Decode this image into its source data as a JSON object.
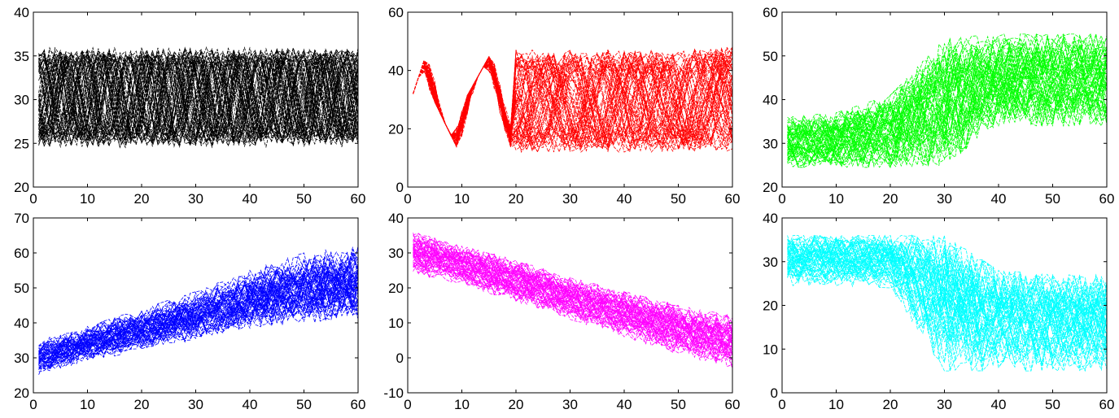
{
  "chart_data": [
    {
      "type": "line",
      "color": "#000000",
      "pattern": "Cyclic: 60 overlapping series oscillating between roughly 25 and 36",
      "xlim": [
        0,
        60
      ],
      "ylim": [
        20,
        40
      ],
      "xticks": [
        0,
        10,
        20,
        30,
        40,
        50,
        60
      ],
      "yticks": [
        20,
        25,
        30,
        35,
        40
      ],
      "tick_labels_x": [
        "0",
        "10",
        "20",
        "30",
        "40",
        "50",
        "60"
      ],
      "tick_labels_y": [
        "20",
        "25",
        "30",
        "35",
        "40"
      ],
      "series_count": 60,
      "x": [
        1,
        10,
        20,
        30,
        40,
        50,
        60
      ],
      "band_low": [
        24.5,
        24.5,
        24.5,
        24.5,
        24.5,
        24.5,
        24.5
      ],
      "band_high": [
        36,
        36,
        36,
        36,
        36,
        36,
        36
      ]
    },
    {
      "type": "line",
      "color": "#ff0000",
      "pattern": "Cyclic start then noisy band between about 12 and 48",
      "xlim": [
        0,
        60
      ],
      "ylim": [
        0,
        60
      ],
      "xticks": [
        0,
        10,
        20,
        30,
        40,
        50,
        60
      ],
      "yticks": [
        0,
        20,
        40,
        60
      ],
      "tick_labels_x": [
        "0",
        "10",
        "20",
        "30",
        "40",
        "50",
        "60"
      ],
      "tick_labels_y": [
        "0",
        "20",
        "40",
        "60"
      ],
      "series_count": 60,
      "x": [
        1,
        4,
        10,
        16,
        20,
        25,
        30,
        40,
        50,
        60
      ],
      "band_low": [
        24,
        33,
        10,
        18,
        12,
        12,
        12,
        12,
        12,
        12
      ],
      "band_high": [
        32,
        49,
        28,
        48,
        49,
        46,
        47,
        47,
        47,
        48
      ]
    },
    {
      "type": "line",
      "color": "#00ff00",
      "pattern": "Upward shift: values jump from about 30 to about 45 between t=20 and t=40",
      "xlim": [
        0,
        60
      ],
      "ylim": [
        20,
        60
      ],
      "xticks": [
        0,
        10,
        20,
        30,
        40,
        50,
        60
      ],
      "yticks": [
        20,
        30,
        40,
        50,
        60
      ],
      "tick_labels_x": [
        "0",
        "10",
        "20",
        "30",
        "40",
        "50",
        "60"
      ],
      "tick_labels_y": [
        "20",
        "30",
        "40",
        "50",
        "60"
      ],
      "series_count": 60,
      "x": [
        1,
        10,
        20,
        30,
        40,
        50,
        60
      ],
      "band_low": [
        24.5,
        24.5,
        24.5,
        25,
        34,
        34,
        34
      ],
      "band_high": [
        36,
        37,
        41,
        54,
        55,
        55,
        55
      ]
    },
    {
      "type": "line",
      "color": "#0000ff",
      "pattern": "Increasing trend from about 30 to about 50",
      "xlim": [
        0,
        60
      ],
      "ylim": [
        20,
        70
      ],
      "xticks": [
        0,
        10,
        20,
        30,
        40,
        50,
        60
      ],
      "yticks": [
        20,
        30,
        40,
        50,
        60,
        70
      ],
      "tick_labels_x": [
        "0",
        "10",
        "20",
        "30",
        "40",
        "50",
        "60"
      ],
      "tick_labels_y": [
        "20",
        "30",
        "40",
        "50",
        "60",
        "70"
      ],
      "series_count": 60,
      "x": [
        1,
        10,
        20,
        30,
        40,
        50,
        60
      ],
      "band_low": [
        25,
        29,
        32,
        35,
        38,
        40,
        40
      ],
      "band_high": [
        35,
        39,
        44,
        49,
        55,
        60,
        62
      ]
    },
    {
      "type": "line",
      "color": "#ff00ff",
      "pattern": "Decreasing trend from about 30 to about 5",
      "xlim": [
        0,
        60
      ],
      "ylim": [
        -10,
        40
      ],
      "xticks": [
        0,
        10,
        20,
        30,
        40,
        50,
        60
      ],
      "yticks": [
        -10,
        0,
        10,
        20,
        30,
        40
      ],
      "tick_labels_x": [
        "0",
        "10",
        "20",
        "30",
        "40",
        "50",
        "60"
      ],
      "tick_labels_y": [
        "-10",
        "0",
        "10",
        "20",
        "30",
        "40"
      ],
      "series_count": 60,
      "x": [
        1,
        10,
        20,
        30,
        40,
        50,
        60
      ],
      "band_low": [
        24,
        21,
        16,
        11,
        6,
        1,
        -3
      ],
      "band_high": [
        36,
        32,
        28,
        23,
        19,
        15,
        12
      ]
    },
    {
      "type": "line",
      "color": "#00ffff",
      "pattern": "Downward shift: values drop from about 30 to about 15 between t=20 and t=40",
      "xlim": [
        0,
        60
      ],
      "ylim": [
        0,
        40
      ],
      "xticks": [
        0,
        10,
        20,
        30,
        40,
        50,
        60
      ],
      "yticks": [
        0,
        10,
        20,
        30,
        40
      ],
      "tick_labels_x": [
        "0",
        "10",
        "20",
        "30",
        "40",
        "50",
        "60"
      ],
      "tick_labels_y": [
        "0",
        "10",
        "20",
        "30",
        "40"
      ],
      "series_count": 60,
      "x": [
        1,
        10,
        20,
        30,
        40,
        50,
        60
      ],
      "band_low": [
        24.5,
        24.5,
        24,
        5,
        5,
        5,
        5
      ],
      "band_high": [
        36,
        36,
        36,
        36,
        28,
        27,
        27
      ]
    }
  ]
}
